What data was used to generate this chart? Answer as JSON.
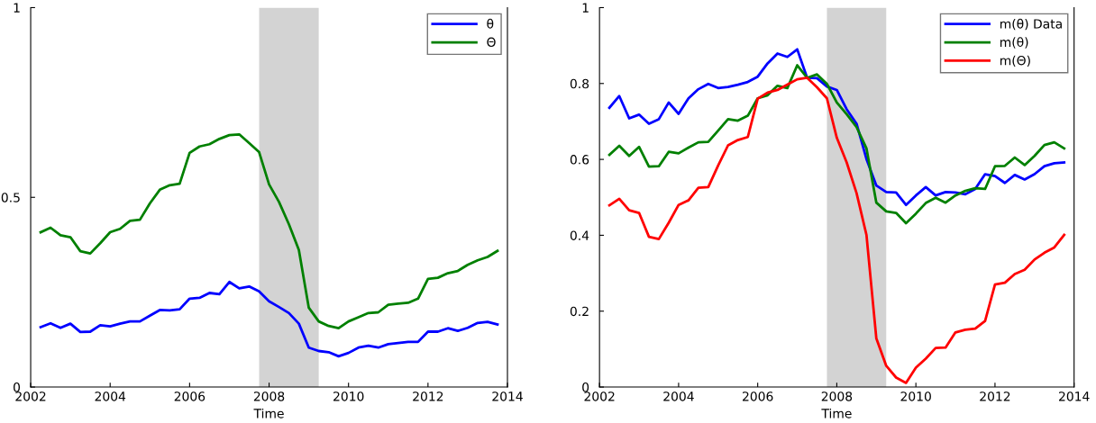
{
  "chart_data": [
    {
      "type": "line",
      "xlabel": "Time",
      "x": [
        2002.25,
        2002.5,
        2002.75,
        2003.0,
        2003.25,
        2003.5,
        2003.75,
        2004.0,
        2004.25,
        2004.5,
        2004.75,
        2005.0,
        2005.25,
        2005.5,
        2005.75,
        2006.0,
        2006.25,
        2006.5,
        2006.75,
        2007.0,
        2007.25,
        2007.5,
        2007.75,
        2008.0,
        2008.25,
        2008.5,
        2008.75,
        2009.0,
        2009.25,
        2009.5,
        2009.75,
        2010.0,
        2010.25,
        2010.5,
        2010.75,
        2011.0,
        2011.25,
        2011.5,
        2011.75,
        2012.0,
        2012.25,
        2012.5,
        2012.75,
        2013.0,
        2013.25,
        2013.5,
        2013.75
      ],
      "series": [
        {
          "name": "θ",
          "color": "#0000ff",
          "values": [
            0.158,
            0.168,
            0.156,
            0.167,
            0.145,
            0.146,
            0.163,
            0.16,
            0.167,
            0.173,
            0.173,
            0.188,
            0.203,
            0.202,
            0.205,
            0.233,
            0.235,
            0.248,
            0.245,
            0.277,
            0.26,
            0.265,
            0.252,
            0.226,
            0.211,
            0.195,
            0.167,
            0.104,
            0.095,
            0.092,
            0.081,
            0.09,
            0.104,
            0.109,
            0.104,
            0.113,
            0.116,
            0.119,
            0.119,
            0.146,
            0.146,
            0.155,
            0.148,
            0.156,
            0.169,
            0.172,
            0.165
          ]
        },
        {
          "name": "Θ",
          "color": "#008000",
          "values": [
            0.408,
            0.42,
            0.4,
            0.395,
            0.358,
            0.352,
            0.379,
            0.408,
            0.417,
            0.438,
            0.441,
            0.484,
            0.52,
            0.532,
            0.536,
            0.617,
            0.634,
            0.64,
            0.654,
            0.664,
            0.666,
            0.643,
            0.619,
            0.534,
            0.488,
            0.429,
            0.361,
            0.209,
            0.173,
            0.161,
            0.155,
            0.173,
            0.184,
            0.195,
            0.197,
            0.217,
            0.22,
            0.222,
            0.233,
            0.285,
            0.288,
            0.3,
            0.306,
            0.322,
            0.334,
            0.343,
            0.359
          ]
        }
      ],
      "xlim": [
        2002,
        2014
      ],
      "xticks": [
        2002,
        2004,
        2006,
        2008,
        2010,
        2012,
        2014
      ],
      "ylim": [
        0,
        1
      ],
      "yticks": [
        0,
        0.5,
        1
      ],
      "bands": [
        {
          "axis": "x",
          "from": 2007.75,
          "to": 2009.25,
          "color": "#d3d3d3"
        }
      ],
      "grid": false,
      "legend": "top right"
    },
    {
      "type": "line",
      "xlabel": "Time",
      "x": [
        2002.25,
        2002.5,
        2002.75,
        2003.0,
        2003.25,
        2003.5,
        2003.75,
        2004.0,
        2004.25,
        2004.5,
        2004.75,
        2005.0,
        2005.25,
        2005.5,
        2005.75,
        2006.0,
        2006.25,
        2006.5,
        2006.75,
        2007.0,
        2007.25,
        2007.5,
        2007.75,
        2008.0,
        2008.25,
        2008.5,
        2008.75,
        2009.0,
        2009.25,
        2009.5,
        2009.75,
        2010.0,
        2010.25,
        2010.5,
        2010.75,
        2011.0,
        2011.25,
        2011.5,
        2011.75,
        2012.0,
        2012.25,
        2012.5,
        2012.75,
        2013.0,
        2013.25,
        2013.5,
        2013.75
      ],
      "series": [
        {
          "name": "m(θ) Data",
          "color": "#0000ff",
          "values": [
            0.736,
            0.767,
            0.708,
            0.718,
            0.694,
            0.706,
            0.75,
            0.72,
            0.761,
            0.785,
            0.799,
            0.788,
            0.791,
            0.797,
            0.804,
            0.818,
            0.853,
            0.879,
            0.87,
            0.89,
            0.815,
            0.814,
            0.792,
            0.783,
            0.732,
            0.694,
            0.601,
            0.531,
            0.514,
            0.513,
            0.48,
            0.505,
            0.527,
            0.505,
            0.514,
            0.513,
            0.508,
            0.522,
            0.561,
            0.556,
            0.538,
            0.559,
            0.547,
            0.561,
            0.582,
            0.59,
            0.592
          ]
        },
        {
          "name": "m(θ)",
          "color": "#008000",
          "values": [
            0.612,
            0.636,
            0.609,
            0.633,
            0.581,
            0.582,
            0.62,
            0.616,
            0.631,
            0.645,
            0.646,
            0.676,
            0.706,
            0.702,
            0.715,
            0.761,
            0.769,
            0.794,
            0.788,
            0.848,
            0.815,
            0.824,
            0.799,
            0.75,
            0.719,
            0.685,
            0.629,
            0.486,
            0.463,
            0.459,
            0.432,
            0.457,
            0.485,
            0.499,
            0.486,
            0.505,
            0.517,
            0.524,
            0.522,
            0.582,
            0.583,
            0.605,
            0.585,
            0.609,
            0.638,
            0.645,
            0.629
          ]
        },
        {
          "name": "m(Θ)",
          "color": "#ff0000",
          "values": [
            0.479,
            0.496,
            0.466,
            0.459,
            0.396,
            0.39,
            0.433,
            0.48,
            0.492,
            0.525,
            0.527,
            0.584,
            0.637,
            0.651,
            0.659,
            0.76,
            0.776,
            0.783,
            0.797,
            0.811,
            0.815,
            0.79,
            0.761,
            0.657,
            0.592,
            0.511,
            0.401,
            0.128,
            0.056,
            0.025,
            0.011,
            0.051,
            0.075,
            0.103,
            0.104,
            0.144,
            0.151,
            0.154,
            0.174,
            0.27,
            0.275,
            0.298,
            0.309,
            0.336,
            0.354,
            0.368,
            0.401
          ]
        }
      ],
      "xlim": [
        2002,
        2014
      ],
      "xticks": [
        2002,
        2004,
        2006,
        2008,
        2010,
        2012,
        2014
      ],
      "ylim": [
        0,
        1
      ],
      "yticks": [
        0,
        0.2,
        0.4,
        0.6,
        0.8,
        1
      ],
      "bands": [
        {
          "axis": "x",
          "from": 2007.75,
          "to": 2009.25,
          "color": "#d3d3d3"
        }
      ],
      "grid": false,
      "legend": "top right"
    }
  ]
}
